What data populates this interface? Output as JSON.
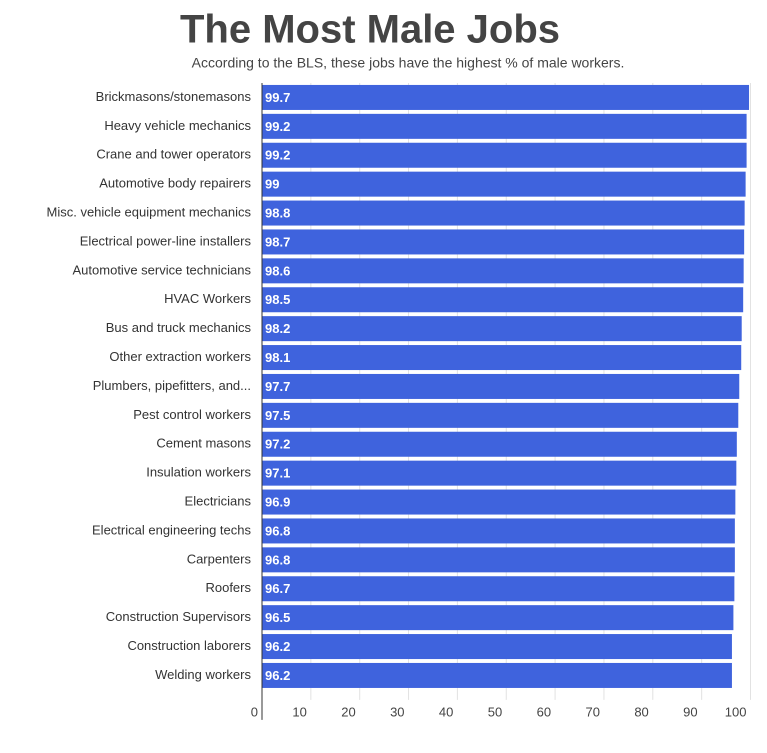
{
  "chart_data": {
    "type": "bar",
    "orientation": "horizontal",
    "title": "The Most Male Jobs",
    "subtitle": "According to the BLS, these jobs have the highest % of male workers.",
    "categories": [
      "Brickmasons/stonemasons",
      "Heavy vehicle mechanics",
      "Crane and tower operators",
      "Automotive body repairers",
      "Misc. vehicle equipment mechanics",
      "Electrical power-line installers",
      "Automotive service technicians",
      "HVAC Workers",
      "Bus and truck mechanics",
      "Other extraction workers",
      "Plumbers, pipefitters, and...",
      "Pest control workers",
      "Cement masons",
      "Insulation workers",
      "Electricians",
      "Electrical engineering techs",
      "Carpenters",
      "Roofers",
      "Construction Supervisors",
      "Construction laborers",
      "Welding workers"
    ],
    "values": [
      99.7,
      99.2,
      99.2,
      99,
      98.8,
      98.7,
      98.6,
      98.5,
      98.2,
      98.1,
      97.7,
      97.5,
      97.2,
      97.1,
      96.9,
      96.8,
      96.8,
      96.7,
      96.5,
      96.2,
      96.2
    ],
    "color": "#3f63dd",
    "xlim": [
      0,
      100
    ],
    "xticks": [
      0,
      10,
      20,
      30,
      40,
      50,
      60,
      70,
      80,
      90,
      100
    ],
    "grid": true
  }
}
